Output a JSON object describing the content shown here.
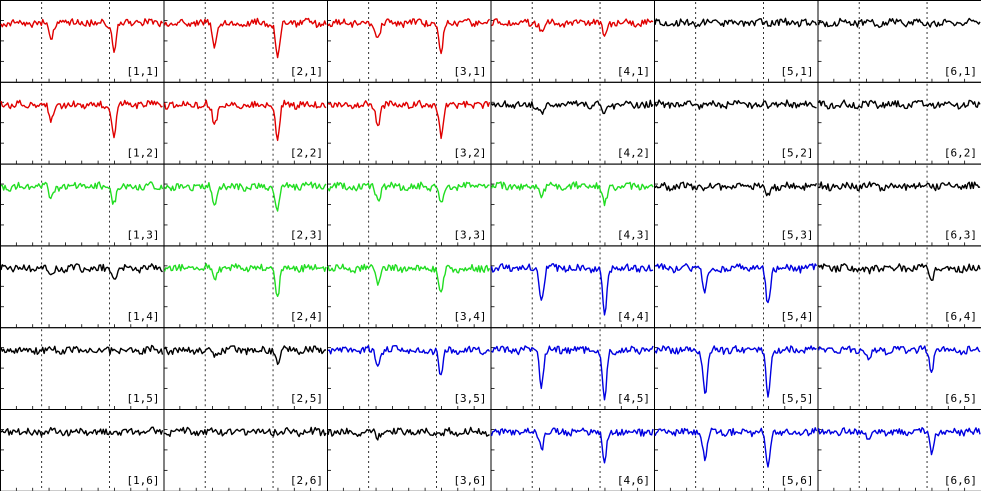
{
  "chart_data": {
    "type": "line",
    "layout": {
      "columns": 6,
      "rows": 6
    },
    "axes": {
      "xticks": "minor ticks on bottom edge",
      "yticks": "minor ticks on left edge",
      "grid": false
    },
    "colors": {
      "red": "#e00000",
      "green": "#22dd22",
      "blue": "#0000e0",
      "black": "#000000"
    },
    "panels": [
      {
        "label": "[1,1]",
        "col": 1,
        "row": 1,
        "color": "red",
        "dips": [
          0.4,
          0.55
        ]
      },
      {
        "label": "[2,1]",
        "col": 2,
        "row": 1,
        "color": "red",
        "dips": [
          0.5,
          0.75
        ]
      },
      {
        "label": "[3,1]",
        "col": 3,
        "row": 1,
        "color": "red",
        "dips": [
          0.35,
          0.6
        ]
      },
      {
        "label": "[4,1]",
        "col": 4,
        "row": 1,
        "color": "red",
        "dips": [
          0.15,
          0.3
        ]
      },
      {
        "label": "[5,1]",
        "col": 5,
        "row": 1,
        "color": "black",
        "dips": [
          0,
          0
        ]
      },
      {
        "label": "[6,1]",
        "col": 6,
        "row": 1,
        "color": "black",
        "dips": [
          0,
          0
        ]
      },
      {
        "label": "[1,2]",
        "col": 1,
        "row": 2,
        "color": "red",
        "dips": [
          0.35,
          0.6
        ]
      },
      {
        "label": "[2,2]",
        "col": 2,
        "row": 2,
        "color": "red",
        "dips": [
          0.45,
          0.75
        ]
      },
      {
        "label": "[3,2]",
        "col": 3,
        "row": 2,
        "color": "red",
        "dips": [
          0.4,
          0.65
        ]
      },
      {
        "label": "[4,2]",
        "col": 4,
        "row": 2,
        "color": "black",
        "dips": [
          0.2,
          0.2
        ]
      },
      {
        "label": "[5,2]",
        "col": 5,
        "row": 2,
        "color": "black",
        "dips": [
          0,
          0
        ]
      },
      {
        "label": "[6,2]",
        "col": 6,
        "row": 2,
        "color": "black",
        "dips": [
          0,
          0
        ]
      },
      {
        "label": "[1,3]",
        "col": 1,
        "row": 3,
        "color": "green",
        "dips": [
          0.3,
          0.35
        ]
      },
      {
        "label": "[2,3]",
        "col": 2,
        "row": 3,
        "color": "green",
        "dips": [
          0.35,
          0.5
        ]
      },
      {
        "label": "[3,3]",
        "col": 3,
        "row": 3,
        "color": "green",
        "dips": [
          0.3,
          0.4
        ]
      },
      {
        "label": "[4,3]",
        "col": 4,
        "row": 3,
        "color": "green",
        "dips": [
          0.2,
          0.4
        ]
      },
      {
        "label": "[5,3]",
        "col": 5,
        "row": 3,
        "color": "black",
        "dips": [
          0.1,
          0.2
        ]
      },
      {
        "label": "[6,3]",
        "col": 6,
        "row": 3,
        "color": "black",
        "dips": [
          0,
          0
        ]
      },
      {
        "label": "[1,4]",
        "col": 1,
        "row": 4,
        "color": "black",
        "dips": [
          0.1,
          0.25
        ]
      },
      {
        "label": "[2,4]",
        "col": 2,
        "row": 4,
        "color": "green",
        "dips": [
          0.25,
          0.55
        ]
      },
      {
        "label": "[3,4]",
        "col": 3,
        "row": 4,
        "color": "green",
        "dips": [
          0.3,
          0.55
        ]
      },
      {
        "label": "[4,4]",
        "col": 4,
        "row": 4,
        "color": "blue",
        "dips": [
          0.7,
          0.95
        ]
      },
      {
        "label": "[5,4]",
        "col": 5,
        "row": 4,
        "color": "blue",
        "dips": [
          0.5,
          0.75
        ]
      },
      {
        "label": "[6,4]",
        "col": 6,
        "row": 4,
        "color": "black",
        "dips": [
          0.1,
          0.2
        ]
      },
      {
        "label": "[1,5]",
        "col": 1,
        "row": 5,
        "color": "black",
        "dips": [
          0,
          0
        ]
      },
      {
        "label": "[2,5]",
        "col": 2,
        "row": 5,
        "color": "black",
        "dips": [
          0.1,
          0.25
        ]
      },
      {
        "label": "[3,5]",
        "col": 3,
        "row": 5,
        "color": "blue",
        "dips": [
          0.35,
          0.55
        ]
      },
      {
        "label": "[4,5]",
        "col": 4,
        "row": 5,
        "color": "blue",
        "dips": [
          0.75,
          1.0
        ]
      },
      {
        "label": "[5,5]",
        "col": 5,
        "row": 5,
        "color": "blue",
        "dips": [
          0.95,
          1.0
        ]
      },
      {
        "label": "[6,5]",
        "col": 6,
        "row": 5,
        "color": "blue",
        "dips": [
          0.2,
          0.4
        ]
      },
      {
        "label": "[1,6]",
        "col": 1,
        "row": 6,
        "color": "black",
        "dips": [
          0,
          0
        ]
      },
      {
        "label": "[2,6]",
        "col": 2,
        "row": 6,
        "color": "black",
        "dips": [
          0,
          0
        ]
      },
      {
        "label": "[3,6]",
        "col": 3,
        "row": 6,
        "color": "black",
        "dips": [
          0.1,
          0.1
        ]
      },
      {
        "label": "[4,6]",
        "col": 4,
        "row": 6,
        "color": "blue",
        "dips": [
          0.35,
          0.6
        ]
      },
      {
        "label": "[5,6]",
        "col": 5,
        "row": 6,
        "color": "blue",
        "dips": [
          0.55,
          0.75
        ]
      },
      {
        "label": "[6,6]",
        "col": 6,
        "row": 6,
        "color": "blue",
        "dips": [
          0.2,
          0.4
        ]
      }
    ]
  }
}
